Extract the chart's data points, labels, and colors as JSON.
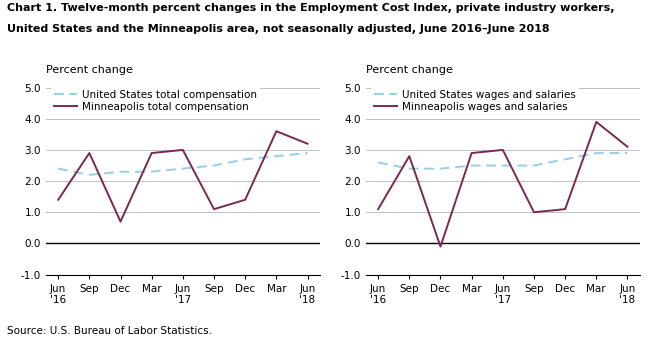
{
  "title_line1": "Chart 1. Twelve-month percent changes in the Employment Cost Index, private industry workers,",
  "title_line2": "United States and the Minneapolis area, not seasonally adjusted, June 2016–June 2018",
  "source": "Source: U.S. Bureau of Labor Statistics.",
  "x_labels": [
    "Jun\n'16",
    "Sep",
    "Dec",
    "Mar",
    "Jun\n'17",
    "Sep",
    "Dec",
    "Mar",
    "Jun\n'18"
  ],
  "x_ticks": [
    0,
    1,
    2,
    3,
    4,
    5,
    6,
    7,
    8
  ],
  "ylabel": "Percent change",
  "ylim": [
    -1.0,
    5.2
  ],
  "yticks": [
    -1.0,
    0.0,
    1.0,
    2.0,
    3.0,
    4.0,
    5.0
  ],
  "left_us": [
    2.4,
    2.2,
    2.3,
    2.3,
    2.4,
    2.5,
    2.7,
    2.8,
    2.9
  ],
  "left_mpls": [
    1.4,
    2.9,
    0.7,
    2.9,
    3.0,
    1.1,
    1.4,
    3.6,
    3.2
  ],
  "left_legend1": "United States total compensation",
  "left_legend2": "Minneapolis total compensation",
  "right_us": [
    2.6,
    2.4,
    2.4,
    2.5,
    2.5,
    2.5,
    2.7,
    2.9,
    2.9
  ],
  "right_mpls": [
    1.1,
    2.8,
    -0.1,
    2.9,
    3.0,
    1.0,
    1.1,
    3.9,
    3.1
  ],
  "right_legend1": "United States wages and salaries",
  "right_legend2": "Minneapolis wages and salaries",
  "us_color": "#92D0E8",
  "mpls_color": "#7B2852",
  "linewidth": 1.4,
  "background_color": "#ffffff",
  "title_fontsize": 8.0,
  "ylabel_fontsize": 8.0,
  "tick_fontsize": 7.5,
  "legend_fontsize": 7.5,
  "source_fontsize": 7.5
}
